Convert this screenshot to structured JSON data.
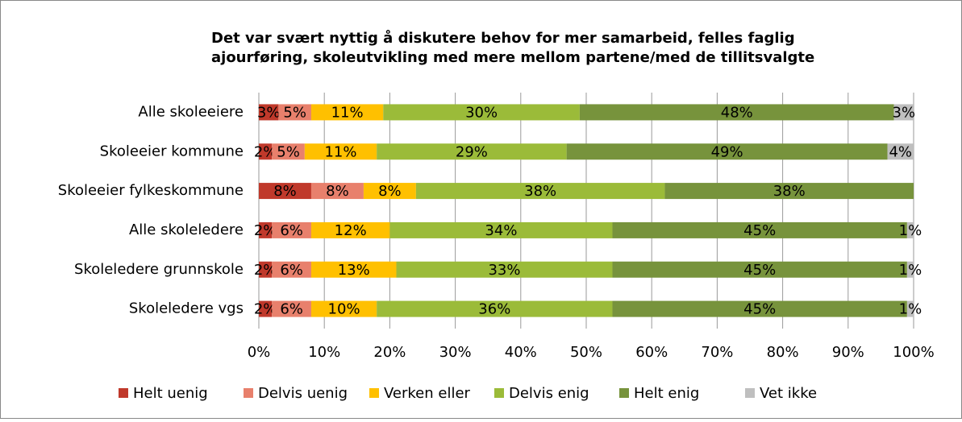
{
  "chart_data": {
    "type": "stacked_barh",
    "title": [
      "Det var svært nyttig å diskutere behov for mer samarbeid, felles faglig",
      "ajourføring, skoleutvikling med mere mellom partene/med de tillitsvalgte"
    ],
    "categories": [
      "Alle skoleeiere",
      "Skoleeier kommune",
      "Skoleeier fylkeskommune",
      "Alle skoleledere",
      "Skoleledere grunnskole",
      "Skoleledere vgs"
    ],
    "series": [
      {
        "name": "Helt uenig",
        "color": "#c0392b",
        "values": [
          3,
          2,
          8,
          2,
          2,
          2
        ],
        "value_labels": [
          "3%",
          "2%",
          "8%",
          "2%",
          "2%",
          "2%"
        ]
      },
      {
        "name": "Delvis uenig",
        "color": "#e8806c",
        "values": [
          5,
          5,
          8,
          6,
          6,
          6
        ],
        "value_labels": [
          "5%",
          "5%",
          "8%",
          "6%",
          "6%",
          "6%"
        ]
      },
      {
        "name": "Verken eller",
        "color": "#ffc000",
        "values": [
          11,
          11,
          8,
          12,
          13,
          10
        ],
        "value_labels": [
          "11%",
          "11%",
          "8%",
          "12%",
          "13%",
          "10%"
        ]
      },
      {
        "name": "Delvis enig",
        "color": "#9bbb39",
        "values": [
          30,
          29,
          38,
          34,
          33,
          36
        ],
        "value_labels": [
          "30%",
          "29%",
          "38%",
          "34%",
          "33%",
          "36%"
        ]
      },
      {
        "name": "Helt enig",
        "color": "#77933c",
        "values": [
          48,
          49,
          38,
          45,
          45,
          45
        ],
        "value_labels": [
          "48%",
          "49%",
          "38%",
          "45%",
          "45%",
          "45%"
        ]
      },
      {
        "name": "Vet ikke",
        "color": "#bfbfbf",
        "values": [
          3,
          4,
          null,
          1,
          1,
          1
        ],
        "value_labels": [
          "3%",
          "4%",
          null,
          "1%",
          "1%",
          "1%"
        ]
      }
    ],
    "xlim": [
      0,
      100
    ],
    "xticks": [
      {
        "value": 0,
        "label": "0%"
      },
      {
        "value": 10,
        "label": "10%"
      },
      {
        "value": 20,
        "label": "20%"
      },
      {
        "value": 30,
        "label": "30%"
      },
      {
        "value": 40,
        "label": "40%"
      },
      {
        "value": 50,
        "label": "50%"
      },
      {
        "value": 60,
        "label": "60%"
      },
      {
        "value": 70,
        "label": "70%"
      },
      {
        "value": 80,
        "label": "80%"
      },
      {
        "value": 90,
        "label": "90%"
      },
      {
        "value": 100,
        "label": "100%"
      }
    ],
    "grid": true,
    "legend": "bottom"
  }
}
